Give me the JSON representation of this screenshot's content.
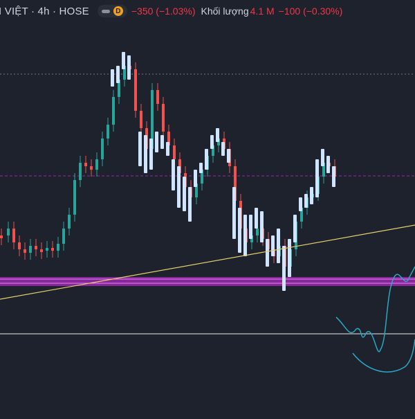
{
  "header": {
    "symbol": "I VIỆT · 4h · HOSE",
    "badge": "D",
    "change": "−350 (−1.03%)",
    "volume_label": "Khối lượng",
    "volume_value": "4.1 M",
    "volume_change": "−100 (−0.30%)"
  },
  "colors": {
    "background": "#1e222d",
    "up": "#26a69a",
    "down": "#ef5350",
    "highlight_bar": "#cfe4ff",
    "zone": "#9c27b0",
    "trendline": "#e6d06a",
    "drawing": "#2aa8c4",
    "level_line": "#e8e8e8",
    "dotted_gray": "#787b86",
    "dotted_purple": "#9c27b0"
  },
  "icons": [
    "eye-toggle-icon",
    "dividend-badge-icon"
  ]
}
